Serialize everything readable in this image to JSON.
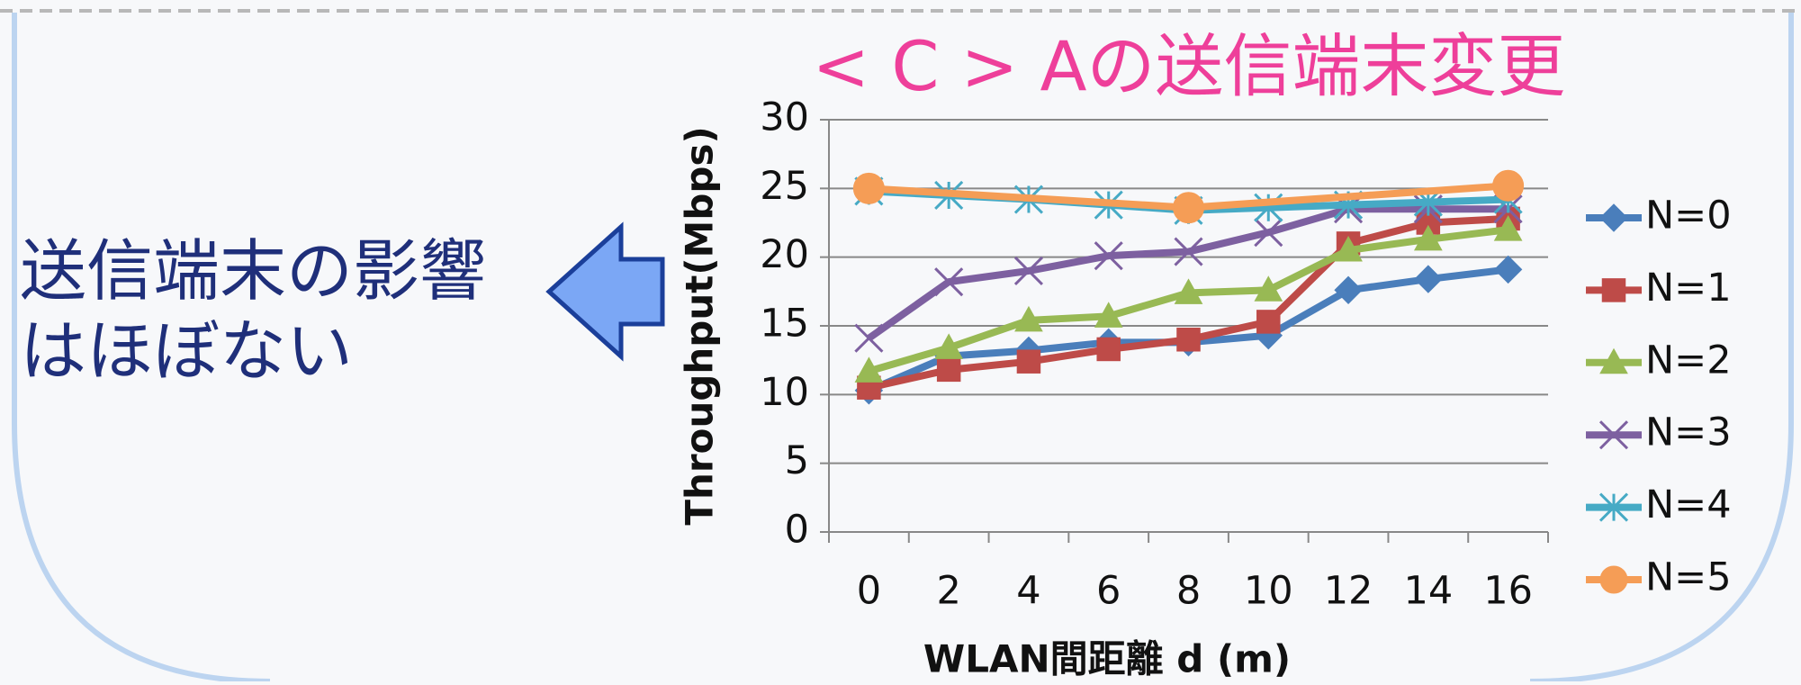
{
  "chart_data": {
    "type": "line",
    "title": "< C > Aの送信端末変更",
    "annotation": [
      "送信端末の影響",
      "はほぼない"
    ],
    "x_label": "WLAN間距離 d (m)",
    "y_label": "Throughput(Mbps)",
    "categories": [
      0,
      2,
      4,
      6,
      8,
      10,
      12,
      14,
      16
    ],
    "ylim": [
      0,
      30
    ],
    "yticks": [
      0,
      5,
      10,
      15,
      20,
      25,
      30
    ],
    "grid": true,
    "legend": "right",
    "connect_gaps": true,
    "series": [
      {
        "name": "N=0",
        "color": "#4a7ebb",
        "marker": "diamond",
        "values": [
          10.3,
          12.8,
          13.2,
          13.8,
          13.8,
          14.3,
          17.6,
          18.4,
          19.1
        ]
      },
      {
        "name": "N=1",
        "color": "#be4b48",
        "marker": "square",
        "values": [
          10.5,
          11.8,
          12.4,
          13.3,
          14.0,
          15.3,
          21.0,
          22.5,
          22.8
        ]
      },
      {
        "name": "N=2",
        "color": "#98b954",
        "marker": "triangle",
        "values": [
          11.7,
          13.4,
          15.4,
          15.7,
          17.4,
          17.6,
          20.5,
          21.3,
          22.0
        ]
      },
      {
        "name": "N=3",
        "color": "#7d60a0",
        "marker": "x",
        "values": [
          14.1,
          18.2,
          19.0,
          20.1,
          20.4,
          21.8,
          23.5,
          23.5,
          23.5
        ]
      },
      {
        "name": "N=4",
        "color": "#46aac5",
        "marker": "star",
        "values": [
          24.8,
          24.5,
          24.2,
          23.8,
          23.4,
          23.6,
          23.8,
          24.0,
          24.2
        ]
      },
      {
        "name": "N=5",
        "color": "#f59d56",
        "marker": "circle",
        "values": [
          25.0,
          null,
          null,
          null,
          23.6,
          null,
          null,
          null,
          25.2
        ]
      }
    ]
  }
}
